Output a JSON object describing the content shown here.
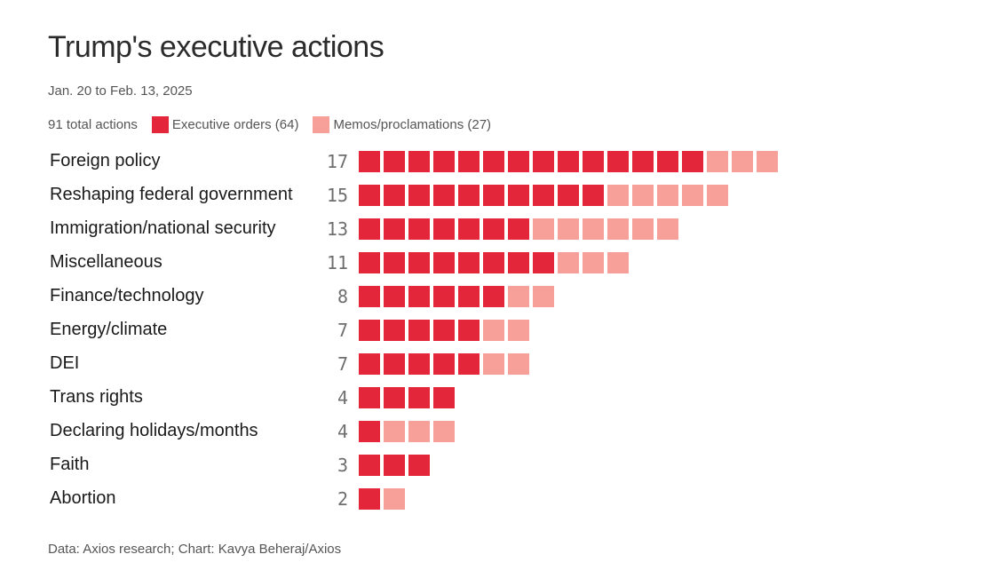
{
  "chart_data": {
    "type": "waffle-bar",
    "title": "Trump's executive actions",
    "subtitle": "Jan. 20 to Feb. 13, 2025",
    "total_label": "91 total actions",
    "legend": [
      {
        "name": "Executive orders (64)",
        "key": "orders",
        "color": "#e3263a"
      },
      {
        "name": "Memos/proclamations (27)",
        "key": "memos",
        "color": "#f7a09a"
      }
    ],
    "categories": [
      "Foreign policy",
      "Reshaping federal government",
      "Immigration/national security",
      "Miscellaneous",
      "Finance/technology",
      "Energy/climate",
      "DEI",
      "Trans rights",
      "Declaring holidays/months",
      "Faith",
      "Abortion"
    ],
    "totals": [
      17,
      15,
      13,
      11,
      8,
      7,
      7,
      4,
      4,
      3,
      2
    ],
    "series": [
      {
        "name": "Executive orders",
        "values": [
          14,
          10,
          7,
          8,
          6,
          5,
          5,
          4,
          1,
          3,
          1
        ]
      },
      {
        "name": "Memos/proclamations",
        "values": [
          3,
          5,
          6,
          3,
          2,
          2,
          2,
          0,
          3,
          0,
          1
        ]
      }
    ],
    "source": "Data: Axios research; Chart: Kavya Beheraj/Axios"
  }
}
